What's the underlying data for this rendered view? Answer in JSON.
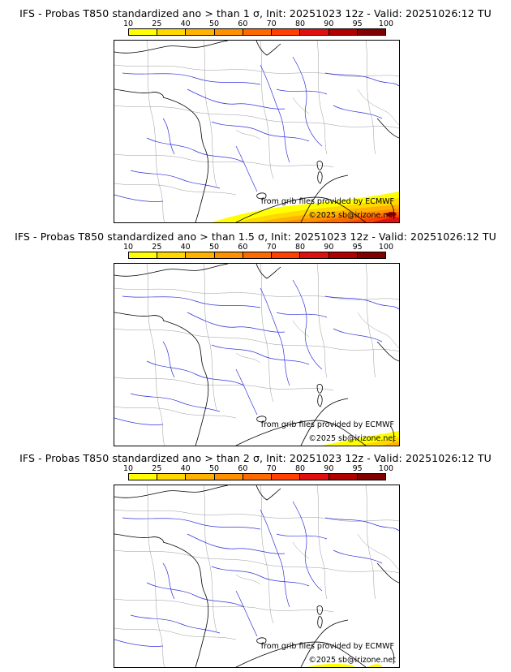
{
  "colorbar": {
    "ticks": [
      "10",
      "25",
      "40",
      "50",
      "60",
      "70",
      "80",
      "90",
      "95",
      "100"
    ],
    "colors": [
      "#ffff00",
      "#ffd800",
      "#ffb300",
      "#ff9000",
      "#ff6a00",
      "#ff4000",
      "#e01010",
      "#b00000",
      "#800000",
      "#550000"
    ]
  },
  "panels": [
    {
      "title": "IFS - Probas T850  standardized ano > than 1 σ, Init: 20251023 12z - Valid: 20251026:12 TU",
      "credit_source": "from grib files provided by ECMWF",
      "credit_copyright": "©2025 sb@irizone.net",
      "probability_coverage": "wide band along southern edge (Mediterranean), max ~100%"
    },
    {
      "title": "IFS - Probas T850  standardized ano > than 1.5 σ, Init: 20251023 12z - Valid: 20251026:12 TU",
      "credit_source": "from grib files provided by ECMWF",
      "credit_copyright": "©2025 sb@irizone.net",
      "probability_coverage": "narrow band in south-east corner, max ~40%"
    },
    {
      "title": "IFS - Probas T850  standardized ano > than 2 σ, Init: 20251023 12z - Valid: 20251026:12 TU",
      "credit_source": "from grib files provided by ECMWF",
      "credit_copyright": "©2025 sb@irizone.net",
      "probability_coverage": "thin yellow patches at bottom edge, ~10%"
    }
  ]
}
